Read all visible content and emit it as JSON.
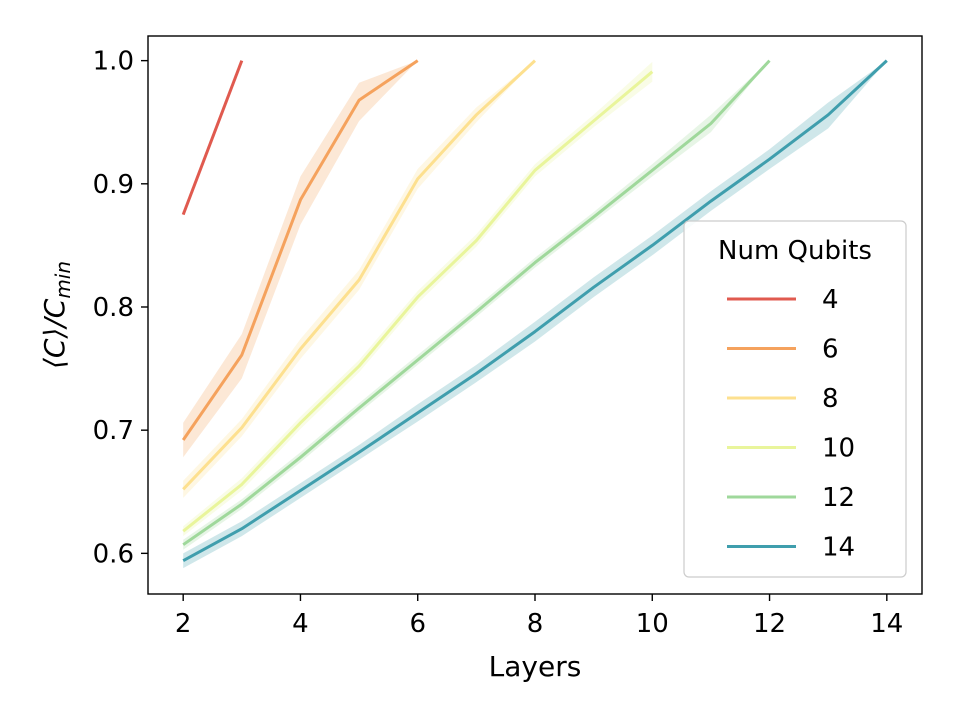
{
  "chart_data": {
    "type": "line",
    "title": "",
    "xlabel": "Layers",
    "ylabel_main": "⟨C⟩/C",
    "ylabel_sub": "min",
    "xlim": [
      1.4,
      14.6
    ],
    "ylim": [
      0.567,
      1.02
    ],
    "xticks": [
      2,
      4,
      6,
      8,
      10,
      12,
      14
    ],
    "yticks": [
      0.6,
      0.7,
      0.8,
      0.9,
      1.0
    ],
    "ytick_labels": [
      "0.6",
      "0.7",
      "0.8",
      "0.9",
      "1.0"
    ],
    "xtick_labels": [
      "2",
      "4",
      "6",
      "8",
      "10",
      "12",
      "14"
    ],
    "grid": false,
    "legend": {
      "title": "Num Qubits",
      "placement": "center-right"
    },
    "series": [
      {
        "name": "4",
        "color": "#e05a4f",
        "x": [
          2,
          3
        ],
        "y": [
          0.875,
          1.0
        ],
        "lo": [
          0.875,
          1.0
        ],
        "hi": [
          0.875,
          1.0
        ]
      },
      {
        "name": "6",
        "color": "#f5a25d",
        "x": [
          2,
          3,
          4,
          5,
          6
        ],
        "y": [
          0.692,
          0.761,
          0.887,
          0.968,
          1.0
        ],
        "lo": [
          0.678,
          0.742,
          0.867,
          0.951,
          1.0
        ],
        "hi": [
          0.706,
          0.778,
          0.906,
          0.982,
          1.0
        ]
      },
      {
        "name": "8",
        "color": "#fde08f",
        "x": [
          2,
          3,
          4,
          5,
          6,
          7,
          8
        ],
        "y": [
          0.652,
          0.702,
          0.766,
          0.822,
          0.904,
          0.956,
          1.0
        ],
        "lo": [
          0.645,
          0.695,
          0.758,
          0.814,
          0.896,
          0.95,
          1.0
        ],
        "hi": [
          0.659,
          0.709,
          0.774,
          0.83,
          0.912,
          0.962,
          1.0
        ]
      },
      {
        "name": "10",
        "color": "#e9f59b",
        "x": [
          2,
          3,
          4,
          5,
          6,
          7,
          8,
          9,
          10
        ],
        "y": [
          0.618,
          0.656,
          0.706,
          0.752,
          0.808,
          0.854,
          0.911,
          0.951,
          0.991
        ],
        "lo": [
          0.614,
          0.651,
          0.701,
          0.747,
          0.803,
          0.849,
          0.906,
          0.946,
          0.983
        ],
        "hi": [
          0.622,
          0.661,
          0.711,
          0.757,
          0.813,
          0.859,
          0.916,
          0.956,
          0.999
        ]
      },
      {
        "name": "12",
        "color": "#9fd89b",
        "x": [
          2,
          3,
          4,
          5,
          6,
          7,
          8,
          9,
          10,
          11,
          12
        ],
        "y": [
          0.607,
          0.64,
          0.678,
          0.718,
          0.757,
          0.796,
          0.836,
          0.873,
          0.911,
          0.949,
          1.0
        ],
        "lo": [
          0.603,
          0.636,
          0.674,
          0.714,
          0.753,
          0.792,
          0.832,
          0.869,
          0.906,
          0.942,
          1.0
        ],
        "hi": [
          0.611,
          0.644,
          0.682,
          0.722,
          0.761,
          0.8,
          0.84,
          0.877,
          0.916,
          0.956,
          1.0
        ]
      },
      {
        "name": "14",
        "color": "#3f9ead",
        "x": [
          2,
          3,
          4,
          5,
          6,
          7,
          8,
          9,
          10,
          11,
          12,
          13,
          14
        ],
        "y": [
          0.594,
          0.62,
          0.651,
          0.682,
          0.714,
          0.746,
          0.78,
          0.816,
          0.85,
          0.886,
          0.92,
          0.956,
          1.0
        ],
        "lo": [
          0.588,
          0.614,
          0.645,
          0.676,
          0.707,
          0.739,
          0.772,
          0.808,
          0.842,
          0.878,
          0.912,
          0.945,
          1.0
        ],
        "hi": [
          0.6,
          0.626,
          0.657,
          0.688,
          0.721,
          0.753,
          0.788,
          0.824,
          0.858,
          0.894,
          0.928,
          0.966,
          1.0
        ]
      }
    ]
  }
}
